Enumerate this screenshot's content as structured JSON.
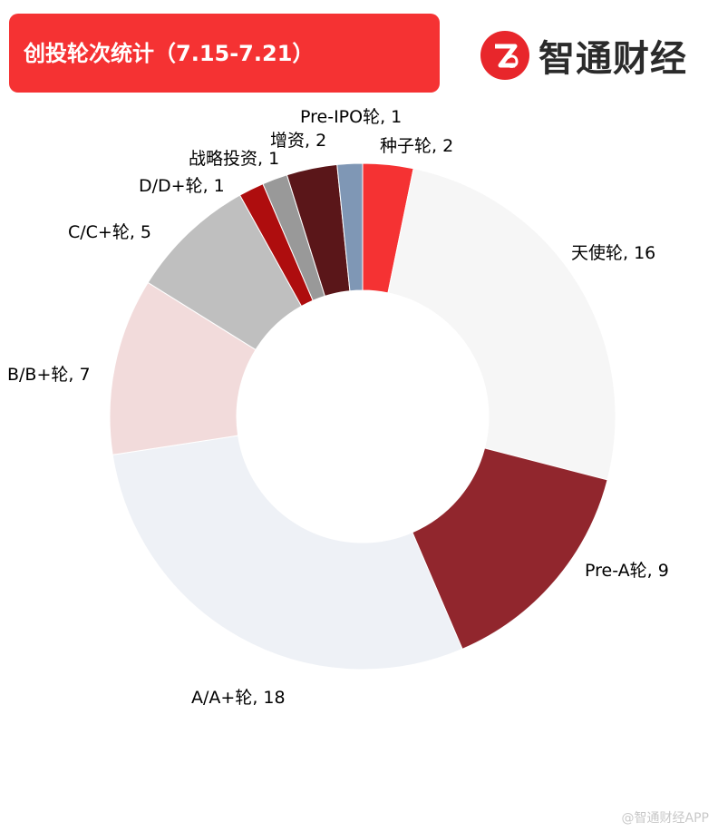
{
  "header": {
    "title": "创投轮次统计（7.15-7.21）"
  },
  "logo": {
    "name": "智通财经",
    "mark_color": "#e8262b"
  },
  "watermark": "@智通财经APP",
  "chart_data": {
    "type": "pie",
    "donut": true,
    "slices": [
      {
        "label": "种子轮",
        "value": 2,
        "color": "#f53233"
      },
      {
        "label": "天使轮",
        "value": 16,
        "color": "#f6f6f6"
      },
      {
        "label": "Pre-A轮",
        "value": 9,
        "color": "#91262d"
      },
      {
        "label": "A/A+轮",
        "value": 18,
        "color": "#eef1f6"
      },
      {
        "label": "B/B+轮",
        "value": 7,
        "color": "#f2dbdb"
      },
      {
        "label": "C/C+轮",
        "value": 5,
        "color": "#bfbfbf"
      },
      {
        "label": "D/D+轮",
        "value": 1,
        "color": "#ae0d0e"
      },
      {
        "label": "战略投资",
        "value": 1,
        "color": "#999999"
      },
      {
        "label": "增资",
        "value": 2,
        "color": "#5a1619"
      },
      {
        "label": "Pre-IPO轮",
        "value": 1,
        "color": "#7f97b5"
      }
    ]
  }
}
